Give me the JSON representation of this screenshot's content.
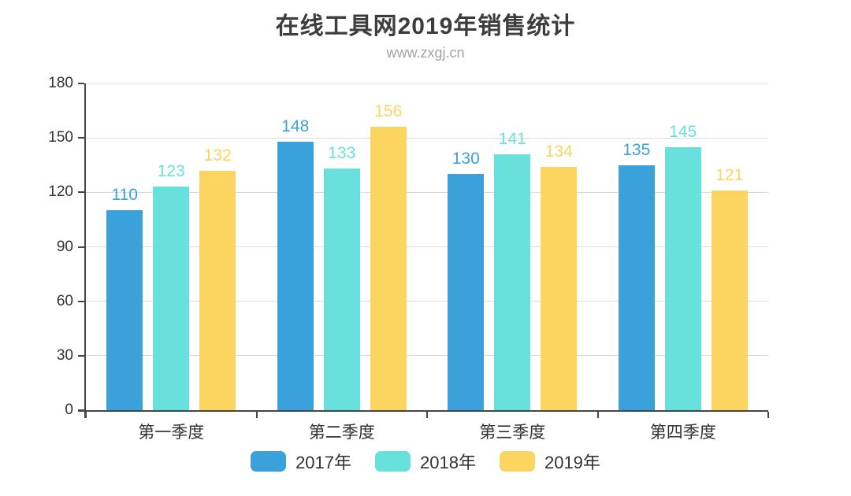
{
  "page": {
    "title": "在线工具网2019年销售统计",
    "subtitle": "www.zxgj.cn"
  },
  "chart_data": {
    "type": "bar",
    "title": "在线工具网2019年销售统计",
    "subtitle": "www.zxgj.cn",
    "categories": [
      "第一季度",
      "第二季度",
      "第三季度",
      "第四季度"
    ],
    "series": [
      {
        "name": "2017年",
        "color": "#3BA1DB",
        "values": [
          110,
          148,
          130,
          135
        ]
      },
      {
        "name": "2018年",
        "color": "#68E0DC",
        "values": [
          123,
          133,
          141,
          145
        ]
      },
      {
        "name": "2019年",
        "color": "#FBD55F",
        "values": [
          132,
          156,
          134,
          121
        ]
      }
    ],
    "yaxis": {
      "min": 0,
      "max": 180,
      "step": 30,
      "ticks": [
        0,
        30,
        60,
        90,
        120,
        150,
        180
      ]
    },
    "xlabel": "",
    "ylabel": "",
    "grid": true,
    "value_labels": true,
    "legend_position": "bottom"
  },
  "colors": {
    "title": "#3d3d3d",
    "subtitle": "#a3a3a3",
    "axis": "#464646",
    "gridline": "#dcdcdc",
    "axis_label": "#333333",
    "legend_label": "#333333",
    "background": "#ffffff"
  }
}
